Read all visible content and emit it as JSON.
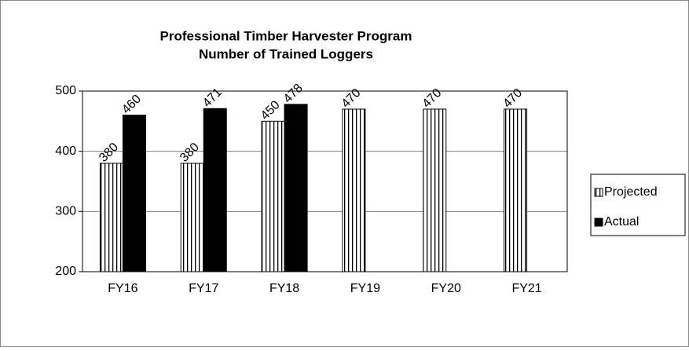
{
  "chart_data": {
    "type": "bar",
    "title": [
      "Professional Timber Harvester Program",
      "Number of Trained Loggers"
    ],
    "categories": [
      "FY16",
      "FY17",
      "FY18",
      "FY19",
      "FY20",
      "FY21"
    ],
    "series": [
      {
        "name": "Projected",
        "color": "#ffffff",
        "hatch": "vertical",
        "values": [
          380,
          380,
          450,
          470,
          470,
          470
        ]
      },
      {
        "name": "Actual",
        "color": "#000000",
        "values": [
          460,
          471,
          478,
          null,
          null,
          null
        ]
      }
    ],
    "ylim": [
      200,
      500
    ],
    "yticks": [
      200,
      300,
      400,
      500
    ],
    "grid": true,
    "legend": "right"
  }
}
